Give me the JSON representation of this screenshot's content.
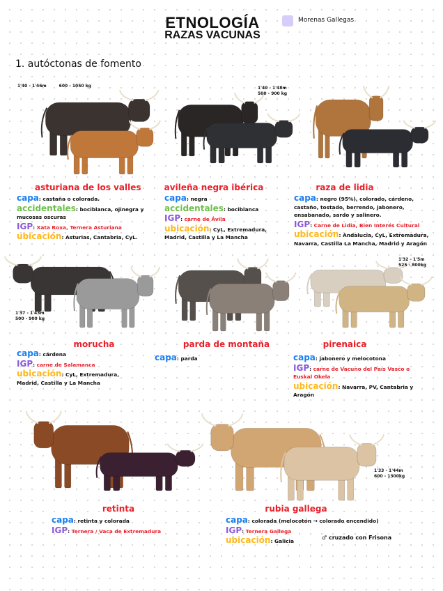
{
  "header": {
    "title": "ETNOLOGÍA",
    "subtitle": "RAZAS VACUNAS"
  },
  "legend": {
    "color": "#d8ccfa",
    "label": "Morenas Gallegas"
  },
  "section": "1. autóctonas de fomento",
  "colors": {
    "name": "#e8202a",
    "capa": "#1a7ff0",
    "accidentales": "#6cc04a",
    "igp": "#8a5ad8",
    "ubicacion": "#ffb81c"
  },
  "breeds": [
    {
      "name": "asturiana de los valles",
      "height": "1'40 - 1'46m",
      "weight": "600 - 1050 kg",
      "cattle_colors": [
        "#3b3330",
        "#c0773a"
      ],
      "fields": [
        {
          "label": "capa",
          "text": "castaña o colorada."
        },
        {
          "label": "accidentales",
          "text": "bociblanca, ojinegra y mucosas oscuras"
        },
        {
          "label": "IGP",
          "text": "Xata Roxa, Ternera Asturiana"
        },
        {
          "label": "ubicación",
          "text": "Asturias, Cantabria, CyL."
        }
      ]
    },
    {
      "name": "avileña negra ibérica",
      "height": "1'40 - 1'48m",
      "weight": "500 - 900 kg",
      "cattle_colors": [
        "#2a2626",
        "#2f3033"
      ],
      "fields": [
        {
          "label": "capa",
          "text": "negra"
        },
        {
          "label": "accidentales",
          "text": "bociblanca"
        },
        {
          "label": "IGP",
          "text": "carne de Ávila"
        },
        {
          "label": "ubicación",
          "text": "CyL, Extremadura, Madrid, Castilla y La Mancha"
        }
      ]
    },
    {
      "name": "raza de lidia",
      "cattle_colors": [
        "#b0753c",
        "#2b2d33"
      ],
      "fields": [
        {
          "label": "capa",
          "text": "negro (95%), colorado, cárdeno, castaño, tostado, berrendo, jabonero, ensabanado, sardo y salinero."
        },
        {
          "label": "IGP",
          "text": "Carne de Lidia, Bien Interés Cultural"
        },
        {
          "label": "ubicación",
          "text": "Andalucía, CyL, Extremadura, Navarra, Castilla La Mancha, Madrid y Aragón"
        }
      ]
    },
    {
      "name": "morucha",
      "height": "1'37 - 1'43m",
      "weight": "500 - 900 kg",
      "cattle_colors": [
        "#3a3535",
        "#9a9a9a"
      ],
      "fields": [
        {
          "label": "capa",
          "text": "cárdena"
        },
        {
          "label": "IGP",
          "text": "carne de Salamanca"
        },
        {
          "label": "ubicación",
          "text": "CyL, Extremadura, Madrid, Castilla y La Mancha"
        }
      ]
    },
    {
      "name": "parda de montaña",
      "cattle_colors": [
        "#55504c",
        "#8a8078"
      ],
      "fields": [
        {
          "label": "capa",
          "text": "parda"
        }
      ]
    },
    {
      "name": "pirenaica",
      "height": "1'32 - 1'5m",
      "weight": "525 - 800kg",
      "cattle_colors": [
        "#d9cfc0",
        "#d1b483"
      ],
      "fields": [
        {
          "label": "capa",
          "text": "jabonero y melocotona"
        },
        {
          "label": "IGP",
          "text": "carne de Vacuno del País Vasco o Euskal Okela"
        },
        {
          "label": "ubicación",
          "text": "Navarra, PV, Cantabria y Aragón"
        }
      ]
    },
    {
      "name": "retinta",
      "cattle_colors": [
        "#8a4a25",
        "#3a2030"
      ],
      "fields": [
        {
          "label": "capa",
          "text": "retinta y colorada"
        },
        {
          "label": "IGP",
          "text": "Ternera / Vaca de Extremadura"
        }
      ]
    },
    {
      "name": "rubia gallega",
      "height": "1'33 - 1'44m",
      "weight": "600 - 1300kg",
      "cattle_colors": [
        "#d2a673",
        "#dcc3a3"
      ],
      "fields": [
        {
          "label": "capa",
          "text": "colorada (melocotón → colorado encendido)"
        },
        {
          "label": "IGP",
          "text": "Ternera Gallega"
        },
        {
          "label": "ubicación",
          "text": "Galicia"
        }
      ],
      "note": "♂ cruzado con Frisona"
    }
  ]
}
